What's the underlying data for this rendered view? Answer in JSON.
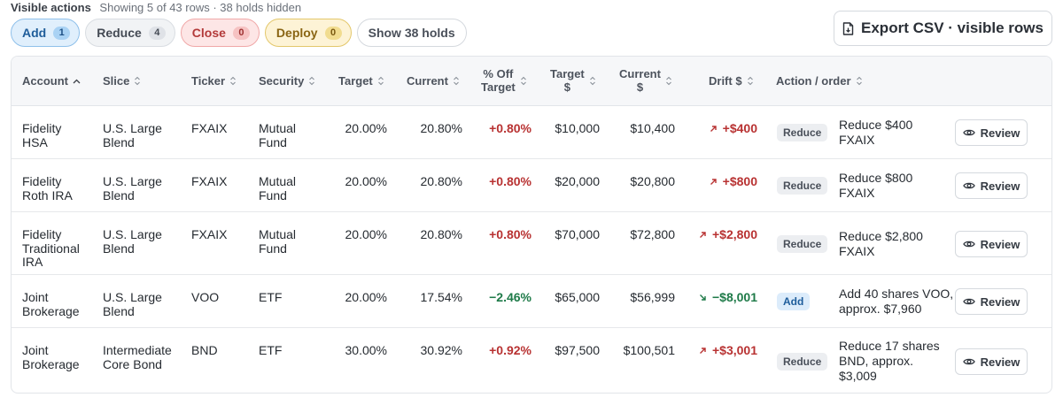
{
  "summary": {
    "label": "Visible actions",
    "text": "Showing 5 of 43 rows · 38 holds hidden"
  },
  "filters": [
    {
      "label": "Add",
      "count": "1"
    },
    {
      "label": "Reduce",
      "count": "4"
    },
    {
      "label": "Close",
      "count": "0"
    },
    {
      "label": "Deploy",
      "count": "0"
    }
  ],
  "show_holds": "Show 38 holds",
  "export_label": "Export CSV · visible rows",
  "columns": {
    "account": "Account",
    "slice": "Slice",
    "ticker": "Ticker",
    "security": "Security",
    "target": "Target",
    "current": "Current",
    "off_target_1": "% Off",
    "off_target_2": "Target",
    "target_usd_1": "Target",
    "target_usd_2": "$",
    "current_usd_1": "Current",
    "current_usd_2": "$",
    "drift": "Drift $",
    "action": "Action / order"
  },
  "rows": [
    {
      "account": [
        "Fidelity",
        "HSA"
      ],
      "slice": [
        "U.S. Large",
        "Blend"
      ],
      "ticker": "FXAIX",
      "security": [
        "Mutual",
        "Fund"
      ],
      "target": "20.00%",
      "current": "20.80%",
      "off": "+0.80%",
      "target_usd": "$10,000",
      "current_usd": "$10,400",
      "drift": "+$400",
      "action": "Reduce",
      "order": [
        "Reduce $400",
        "FXAIX"
      ],
      "review": "Review"
    },
    {
      "account": [
        "Fidelity",
        "Roth IRA"
      ],
      "slice": [
        "U.S. Large",
        "Blend"
      ],
      "ticker": "FXAIX",
      "security": [
        "Mutual",
        "Fund"
      ],
      "target": "20.00%",
      "current": "20.80%",
      "off": "+0.80%",
      "target_usd": "$20,000",
      "current_usd": "$20,800",
      "drift": "+$800",
      "action": "Reduce",
      "order": [
        "Reduce $800",
        "FXAIX"
      ],
      "review": "Review"
    },
    {
      "account": [
        "Fidelity",
        "Traditional",
        "IRA"
      ],
      "slice": [
        "U.S. Large",
        "Blend"
      ],
      "ticker": "FXAIX",
      "security": [
        "Mutual",
        "Fund"
      ],
      "target": "20.00%",
      "current": "20.80%",
      "off": "+0.80%",
      "target_usd": "$70,000",
      "current_usd": "$72,800",
      "drift": "+$2,800",
      "action": "Reduce",
      "order": [
        "Reduce $2,800",
        "FXAIX"
      ],
      "review": "Review"
    },
    {
      "account": [
        "Joint",
        "Brokerage"
      ],
      "slice": [
        "U.S. Large",
        "Blend"
      ],
      "ticker": "VOO",
      "security": [
        "ETF"
      ],
      "target": "20.00%",
      "current": "17.54%",
      "off": "−2.46%",
      "target_usd": "$65,000",
      "current_usd": "$56,999",
      "drift": "−$8,001",
      "action": "Add",
      "order": [
        "Add 40 shares VOO,",
        "approx. $7,960"
      ],
      "review": "Review"
    },
    {
      "account": [
        "Joint",
        "Brokerage"
      ],
      "slice": [
        "Intermediate",
        "Core Bond"
      ],
      "ticker": "BND",
      "security": [
        "ETF"
      ],
      "target": "30.00%",
      "current": "30.92%",
      "off": "+0.92%",
      "target_usd": "$97,500",
      "current_usd": "$100,501",
      "drift": "+$3,001",
      "action": "Reduce",
      "order": [
        "Reduce 17 shares",
        "BND, approx.",
        "$3,009"
      ],
      "review": "Review"
    }
  ]
}
